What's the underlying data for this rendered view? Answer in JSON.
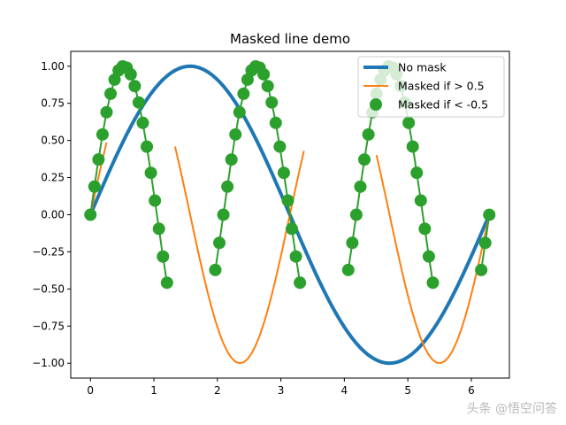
{
  "chart_data": {
    "type": "line",
    "title": "Masked line demo",
    "xlabel": "",
    "ylabel": "",
    "xlim": [
      -0.31,
      6.6
    ],
    "ylim": [
      -1.1,
      1.1
    ],
    "x_ticks": [
      0,
      1,
      2,
      3,
      4,
      5,
      6
    ],
    "x_tick_labels": [
      "0",
      "1",
      "2",
      "3",
      "4",
      "5",
      "6"
    ],
    "y_ticks": [
      -1.0,
      -0.75,
      -0.5,
      -0.25,
      0.0,
      0.25,
      0.5,
      0.75,
      1.0
    ],
    "y_tick_labels": [
      "−1.00",
      "−0.75",
      "−0.50",
      "−0.25",
      "0.00",
      "0.25",
      "0.50",
      "0.75",
      "1.00"
    ],
    "grid": false,
    "legend_placement": "upper right",
    "x_range": [
      0,
      6.283
    ],
    "series": [
      {
        "name": "No mask",
        "function": "sin(x)",
        "color": "#1f77b4",
        "style": "line"
      },
      {
        "name": "Masked if > 0.5",
        "function": "sin(2x)",
        "mask": "y > 0.5",
        "color": "#ff7f0e",
        "style": "line"
      },
      {
        "name": "Masked if < -0.5",
        "function": "sin(3x)",
        "mask": "y < -0.5",
        "color": "#2ca02c",
        "style": "markers"
      }
    ]
  },
  "watermark": {
    "text": "头条 @悟空问答"
  }
}
